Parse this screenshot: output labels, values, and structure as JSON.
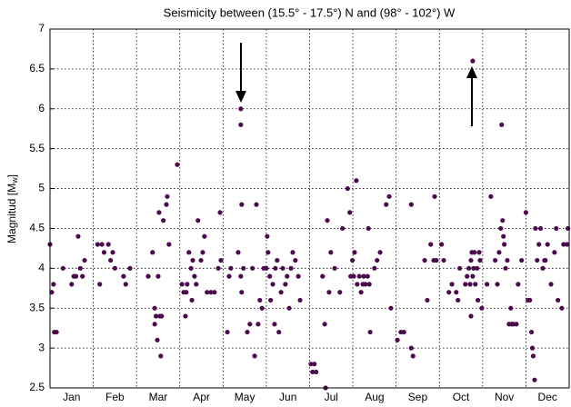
{
  "chart_data": {
    "type": "scatter",
    "title": "Seismicity between (15.5° - 17.5°) N and (98° - 102°) W",
    "ylabel": "Magnitud [M",
    "ylabel_sub": "w",
    "ylabel_end": "]",
    "color": "#4b0a4b",
    "xlim": [
      0,
      12
    ],
    "xticks": [
      {
        "value": 0.5,
        "label": "Jan"
      },
      {
        "value": 1.5,
        "label": "Feb"
      },
      {
        "value": 2.5,
        "label": "Mar"
      },
      {
        "value": 3.5,
        "label": "Apr"
      },
      {
        "value": 4.5,
        "label": "May"
      },
      {
        "value": 5.5,
        "label": "Jun"
      },
      {
        "value": 6.5,
        "label": "Jul"
      },
      {
        "value": 7.5,
        "label": "Aug"
      },
      {
        "value": 8.5,
        "label": "Sep"
      },
      {
        "value": 9.5,
        "label": "Oct"
      },
      {
        "value": 10.5,
        "label": "Nov"
      },
      {
        "value": 11.5,
        "label": "Dec"
      }
    ],
    "xgrid": [
      1,
      2,
      3,
      4,
      5,
      6,
      7,
      8,
      9,
      10,
      11
    ],
    "ylim": [
      2.5,
      7
    ],
    "yticks": [
      2.5,
      3,
      3.5,
      4,
      4.5,
      5,
      5.5,
      6,
      6.5,
      7
    ],
    "grid": true,
    "x": [
      0.0,
      0.04,
      0.08,
      0.1,
      0.15,
      0.3,
      0.5,
      0.55,
      0.6,
      0.65,
      0.7,
      0.75,
      0.8,
      1.1,
      1.15,
      1.2,
      1.25,
      1.35,
      1.4,
      1.45,
      1.5,
      1.7,
      1.75,
      1.85,
      2.27,
      2.37,
      2.42,
      2.42,
      2.45,
      2.48,
      2.5,
      2.52,
      2.54,
      2.56,
      2.58,
      2.62,
      2.69,
      2.71,
      2.75,
      2.94,
      3.05,
      3.09,
      3.13,
      3.15,
      3.17,
      3.21,
      3.26,
      3.28,
      3.3,
      3.34,
      3.38,
      3.42,
      3.49,
      3.53,
      3.57,
      3.63,
      3.72,
      3.8,
      3.89,
      3.93,
      3.95,
      4.1,
      4.14,
      4.18,
      4.35,
      4.41,
      4.41,
      4.41,
      4.43,
      4.43,
      4.47,
      4.56,
      4.62,
      4.68,
      4.73,
      4.77,
      4.81,
      4.85,
      4.9,
      4.94,
      5.0,
      5.02,
      5.04,
      5.08,
      5.1,
      5.15,
      5.19,
      5.21,
      5.25,
      5.29,
      5.34,
      5.38,
      5.44,
      5.48,
      5.53,
      5.57,
      5.61,
      5.67,
      5.74,
      5.78,
      6.03,
      6.07,
      6.11,
      6.15,
      6.3,
      6.35,
      6.37,
      6.41,
      6.45,
      6.49,
      6.58,
      6.7,
      6.76,
      6.88,
      6.93,
      6.95,
      6.99,
      7.02,
      7.04,
      7.08,
      7.1,
      7.15,
      7.19,
      7.23,
      7.25,
      7.29,
      7.34,
      7.36,
      7.38,
      7.4,
      7.5,
      7.56,
      7.63,
      7.77,
      7.84,
      7.88,
      8.03,
      8.11,
      8.18,
      8.35,
      8.39,
      8.35,
      8.66,
      8.72,
      8.8,
      8.87,
      8.89,
      8.93,
      9.05,
      9.1,
      9.22,
      9.29,
      9.39,
      9.43,
      9.47,
      9.6,
      9.64,
      9.68,
      9.71,
      9.73,
      9.73,
      9.75,
      9.77,
      9.77,
      9.79,
      9.81,
      9.83,
      9.87,
      9.89,
      9.92,
      9.94,
      9.98,
      10.1,
      10.19,
      10.29,
      10.34,
      10.38,
      10.42,
      10.44,
      10.46,
      10.48,
      10.5,
      10.53,
      10.57,
      10.61,
      10.65,
      10.67,
      10.71,
      10.78,
      10.82,
      10.9,
      11.0,
      11.05,
      11.09,
      11.13,
      11.15,
      11.17,
      11.2,
      11.22,
      11.26,
      11.3,
      11.34,
      11.39,
      11.43,
      11.45,
      11.5,
      11.58,
      11.66,
      11.7,
      11.74,
      11.83,
      11.87,
      11.95,
      11.97
    ],
    "values": [
      4.3,
      3.7,
      3.8,
      3.2,
      3.2,
      4.0,
      3.8,
      3.9,
      3.9,
      4.4,
      4.0,
      3.9,
      4.1,
      4.3,
      3.8,
      4.3,
      4.2,
      4.3,
      4.1,
      4.2,
      4.0,
      3.9,
      3.8,
      4.0,
      3.9,
      4.2,
      3.5,
      3.3,
      3.4,
      3.1,
      3.9,
      4.7,
      3.4,
      2.9,
      3.4,
      4.6,
      4.8,
      4.9,
      4.3,
      5.3,
      3.8,
      3.7,
      3.4,
      3.7,
      3.8,
      4.2,
      4.0,
      3.6,
      4.1,
      3.9,
      3.8,
      4.6,
      4.1,
      4.2,
      4.4,
      3.7,
      3.7,
      3.7,
      4.0,
      4.7,
      4.1,
      3.2,
      3.9,
      4.0,
      4.2,
      3.9,
      6.0,
      5.8,
      4.8,
      3.7,
      4.0,
      3.2,
      3.3,
      4.0,
      2.9,
      4.8,
      3.3,
      3.6,
      3.5,
      4.0,
      4.0,
      4.4,
      4.2,
      3.9,
      3.6,
      3.8,
      3.3,
      4.0,
      4.1,
      3.2,
      3.7,
      4.0,
      3.8,
      3.9,
      3.5,
      4.0,
      4.2,
      4.1,
      3.9,
      3.6,
      2.8,
      2.7,
      2.8,
      2.7,
      3.9,
      3.3,
      2.5,
      4.6,
      3.7,
      4.2,
      4.0,
      3.7,
      4.5,
      5.0,
      4.7,
      3.9,
      4.1,
      3.9,
      4.2,
      5.1,
      3.8,
      3.9,
      3.7,
      3.8,
      3.9,
      3.8,
      3.9,
      4.5,
      3.8,
      3.2,
      4.0,
      4.1,
      4.2,
      4.8,
      4.9,
      3.5,
      3.1,
      3.2,
      3.2,
      3.0,
      2.9,
      4.8,
      4.1,
      3.6,
      4.3,
      4.1,
      4.9,
      4.1,
      4.3,
      4.1,
      3.7,
      3.8,
      3.7,
      3.6,
      4.0,
      3.8,
      3.9,
      4.0,
      3.8,
      4.1,
      3.4,
      4.2,
      3.9,
      6.6,
      4.0,
      4.2,
      3.8,
      4.0,
      3.6,
      4.2,
      4.1,
      3.5,
      3.8,
      4.9,
      4.1,
      3.8,
      4.2,
      4.5,
      5.8,
      4.6,
      4.4,
      4.3,
      4.0,
      4.1,
      3.3,
      3.5,
      3.3,
      3.3,
      3.3,
      3.8,
      4.1,
      4.7,
      3.6,
      3.6,
      3.2,
      3.0,
      2.9,
      2.6,
      4.5,
      4.1,
      4.3,
      4.5,
      4.0,
      4.1,
      4.1,
      4.3,
      3.8,
      4.2,
      4.5,
      3.6,
      3.5,
      4.3,
      4.3,
      4.5
    ]
  }
}
